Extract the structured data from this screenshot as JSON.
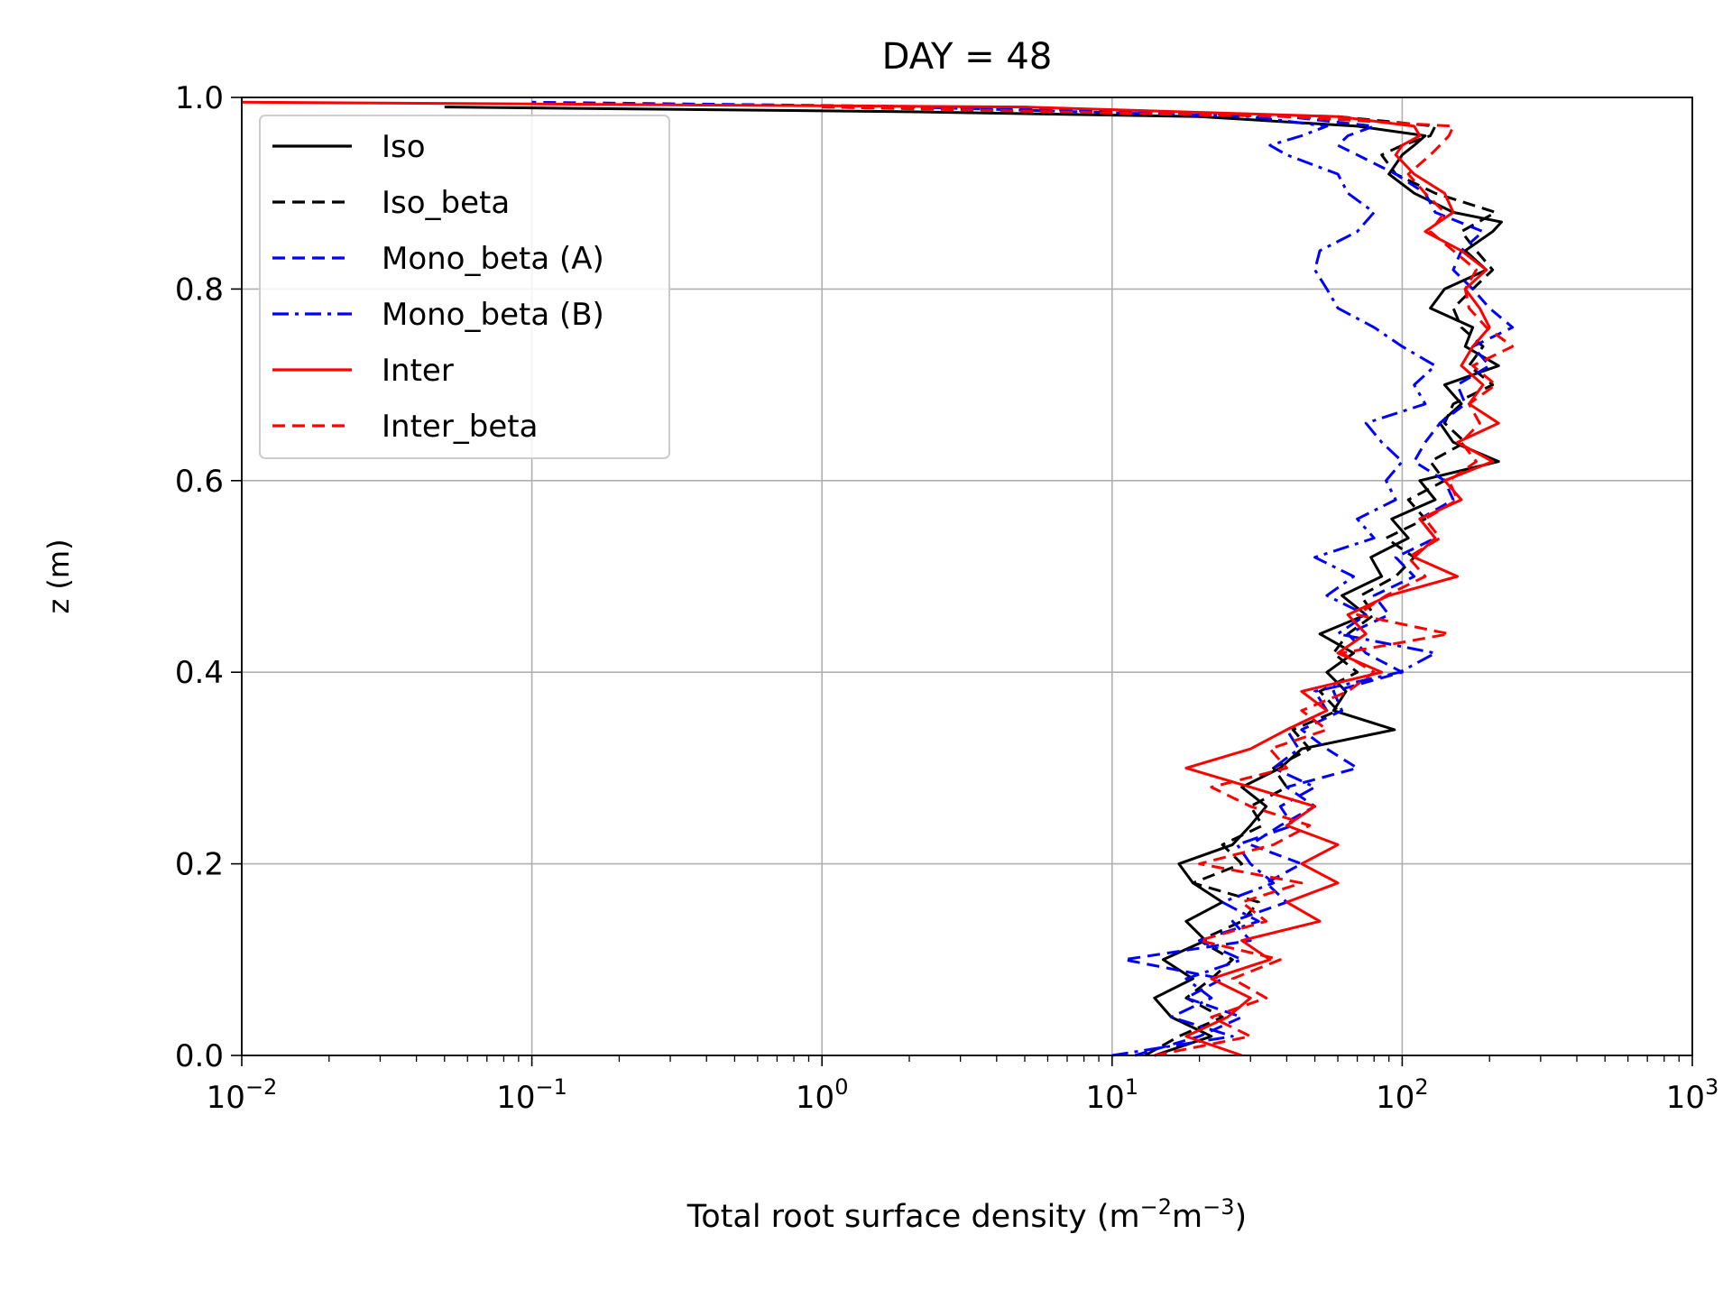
{
  "chart_data": {
    "type": "line",
    "title": "DAY = 48",
    "xlabel": "Total root surface density (m",
    "xlabel_sup1": "−2",
    "xlabel_mid": "m",
    "xlabel_sup2": "−3",
    "xlabel_end": ")",
    "ylabel": "z (m)",
    "x_scale": "log",
    "xlim": [
      0.01,
      1000
    ],
    "ylim": [
      0,
      1
    ],
    "grid": true,
    "legend_position": "top-left",
    "x_ticks": [
      {
        "value": 0.01,
        "base": "10",
        "exp": "−2"
      },
      {
        "value": 0.1,
        "base": "10",
        "exp": "−1"
      },
      {
        "value": 1,
        "base": "10",
        "exp": "0"
      },
      {
        "value": 10,
        "base": "10",
        "exp": "1"
      },
      {
        "value": 100,
        "base": "10",
        "exp": "2"
      },
      {
        "value": 1000,
        "base": "10",
        "exp": "3"
      }
    ],
    "y_ticks": [
      {
        "value": 0.0,
        "label": "0.0"
      },
      {
        "value": 0.2,
        "label": "0.2"
      },
      {
        "value": 0.4,
        "label": "0.4"
      },
      {
        "value": 0.6,
        "label": "0.6"
      },
      {
        "value": 0.8,
        "label": "0.8"
      },
      {
        "value": 1.0,
        "label": "1.0"
      }
    ],
    "series": [
      {
        "name": "Iso",
        "color": "#000000",
        "dash": "solid",
        "z": [
          0.0,
          0.02,
          0.04,
          0.06,
          0.08,
          0.1,
          0.12,
          0.14,
          0.16,
          0.18,
          0.2,
          0.22,
          0.24,
          0.26,
          0.28,
          0.3,
          0.32,
          0.34,
          0.36,
          0.38,
          0.4,
          0.42,
          0.44,
          0.46,
          0.48,
          0.5,
          0.52,
          0.54,
          0.56,
          0.58,
          0.6,
          0.62,
          0.64,
          0.66,
          0.68,
          0.7,
          0.72,
          0.74,
          0.76,
          0.78,
          0.8,
          0.82,
          0.84,
          0.86,
          0.87,
          0.88,
          0.9,
          0.92,
          0.94,
          0.95,
          0.96,
          0.97,
          0.98,
          0.985,
          0.99
        ],
        "x": [
          14,
          22,
          16,
          14,
          19,
          15,
          21,
          18,
          24,
          19,
          17,
          26,
          30,
          34,
          28,
          38,
          45,
          94,
          58,
          64,
          55,
          68,
          52,
          75,
          62,
          85,
          78,
          105,
          92,
          130,
          115,
          215,
          150,
          135,
          160,
          140,
          215,
          165,
          175,
          125,
          140,
          195,
          165,
          205,
          220,
          150,
          110,
          90,
          100,
          110,
          120,
          70,
          20,
          2,
          0.05
        ]
      },
      {
        "name": "Iso_beta",
        "color": "#000000",
        "dash": "dashed",
        "z": [
          0.0,
          0.02,
          0.04,
          0.06,
          0.08,
          0.1,
          0.12,
          0.14,
          0.16,
          0.18,
          0.2,
          0.22,
          0.24,
          0.26,
          0.28,
          0.3,
          0.32,
          0.34,
          0.36,
          0.38,
          0.4,
          0.42,
          0.44,
          0.46,
          0.48,
          0.5,
          0.52,
          0.54,
          0.56,
          0.58,
          0.6,
          0.62,
          0.64,
          0.66,
          0.68,
          0.7,
          0.72,
          0.74,
          0.76,
          0.78,
          0.8,
          0.82,
          0.84,
          0.86,
          0.88,
          0.9,
          0.92,
          0.94,
          0.95,
          0.96,
          0.97,
          0.98,
          0.985,
          0.99
        ],
        "x": [
          13,
          17,
          24,
          18,
          22,
          26,
          20,
          28,
          32,
          19,
          28,
          24,
          33,
          30,
          40,
          36,
          48,
          42,
          60,
          52,
          70,
          58,
          65,
          80,
          72,
          95,
          110,
          88,
          120,
          105,
          140,
          125,
          165,
          140,
          150,
          205,
          170,
          190,
          160,
          150,
          175,
          205,
          180,
          160,
          210,
          130,
          95,
          85,
          100,
          125,
          130,
          60,
          10,
          1
        ]
      },
      {
        "name": "Mono_beta (A)",
        "color": "#0000ff",
        "dash": "dashed",
        "z": [
          0.0,
          0.02,
          0.04,
          0.06,
          0.08,
          0.1,
          0.12,
          0.14,
          0.16,
          0.18,
          0.2,
          0.22,
          0.24,
          0.26,
          0.28,
          0.3,
          0.32,
          0.34,
          0.36,
          0.38,
          0.4,
          0.42,
          0.44,
          0.46,
          0.48,
          0.5,
          0.52,
          0.54,
          0.56,
          0.58,
          0.6,
          0.62,
          0.64,
          0.66,
          0.68,
          0.7,
          0.72,
          0.74,
          0.76,
          0.78,
          0.8,
          0.82,
          0.84,
          0.86,
          0.88,
          0.9,
          0.92,
          0.94,
          0.95,
          0.96,
          0.97,
          0.98,
          0.99,
          0.995
        ],
        "x": [
          12,
          20,
          28,
          18,
          24,
          11,
          30,
          26,
          40,
          34,
          45,
          30,
          38,
          50,
          40,
          70,
          55,
          45,
          62,
          58,
          100,
          75,
          65,
          90,
          80,
          110,
          95,
          130,
          115,
          150,
          140,
          110,
          120,
          135,
          165,
          155,
          200,
          175,
          240,
          200,
          175,
          150,
          160,
          190,
          130,
          120,
          95,
          70,
          60,
          65,
          80,
          40,
          3,
          0.1
        ]
      },
      {
        "name": "Mono_beta (B)",
        "color": "#0000ff",
        "dash": "dashdot",
        "z": [
          0.0,
          0.02,
          0.04,
          0.06,
          0.08,
          0.1,
          0.12,
          0.14,
          0.16,
          0.18,
          0.2,
          0.22,
          0.24,
          0.26,
          0.28,
          0.3,
          0.32,
          0.34,
          0.36,
          0.38,
          0.4,
          0.42,
          0.44,
          0.46,
          0.48,
          0.5,
          0.52,
          0.54,
          0.56,
          0.58,
          0.6,
          0.62,
          0.64,
          0.66,
          0.68,
          0.7,
          0.72,
          0.74,
          0.76,
          0.78,
          0.8,
          0.82,
          0.84,
          0.86,
          0.88,
          0.9,
          0.92,
          0.94,
          0.95,
          0.96,
          0.97,
          0.98,
          0.99
        ],
        "x": [
          10,
          26,
          16,
          22,
          18,
          28,
          20,
          32,
          24,
          36,
          30,
          27,
          42,
          38,
          50,
          36,
          44,
          40,
          55,
          50,
          98,
          130,
          60,
          75,
          55,
          68,
          50,
          80,
          70,
          95,
          88,
          100,
          85,
          75,
          120,
          110,
          130,
          100,
          80,
          60,
          55,
          50,
          52,
          70,
          80,
          65,
          60,
          40,
          35,
          45,
          55,
          30,
          2
        ]
      },
      {
        "name": "Inter",
        "color": "#ff0000",
        "dash": "solid",
        "z": [
          0.0,
          0.02,
          0.04,
          0.06,
          0.08,
          0.1,
          0.12,
          0.14,
          0.16,
          0.18,
          0.2,
          0.22,
          0.24,
          0.26,
          0.28,
          0.3,
          0.32,
          0.34,
          0.36,
          0.38,
          0.4,
          0.42,
          0.44,
          0.46,
          0.48,
          0.5,
          0.52,
          0.54,
          0.56,
          0.58,
          0.6,
          0.62,
          0.64,
          0.66,
          0.68,
          0.7,
          0.72,
          0.74,
          0.76,
          0.78,
          0.8,
          0.82,
          0.84,
          0.86,
          0.88,
          0.9,
          0.92,
          0.94,
          0.95,
          0.96,
          0.97,
          0.98,
          0.99,
          0.995
        ],
        "x": [
          28,
          18,
          25,
          30,
          22,
          35,
          28,
          52,
          40,
          60,
          45,
          60,
          40,
          50,
          30,
          18,
          30,
          40,
          55,
          45,
          85,
          60,
          75,
          65,
          90,
          155,
          110,
          130,
          115,
          160,
          140,
          205,
          155,
          215,
          170,
          190,
          160,
          175,
          200,
          185,
          165,
          195,
          160,
          120,
          150,
          140,
          110,
          95,
          100,
          115,
          110,
          60,
          5,
          0.01
        ]
      },
      {
        "name": "Inter_beta",
        "color": "#ff0000",
        "dash": "dashed",
        "z": [
          0.0,
          0.02,
          0.04,
          0.06,
          0.08,
          0.1,
          0.12,
          0.14,
          0.16,
          0.18,
          0.2,
          0.22,
          0.24,
          0.26,
          0.28,
          0.3,
          0.32,
          0.34,
          0.36,
          0.38,
          0.4,
          0.42,
          0.44,
          0.46,
          0.48,
          0.5,
          0.52,
          0.54,
          0.56,
          0.58,
          0.6,
          0.62,
          0.64,
          0.66,
          0.68,
          0.7,
          0.72,
          0.74,
          0.76,
          0.78,
          0.8,
          0.82,
          0.84,
          0.86,
          0.88,
          0.9,
          0.92,
          0.94,
          0.95,
          0.96,
          0.97,
          0.98,
          0.99
        ],
        "x": [
          14,
          30,
          22,
          34,
          26,
          38,
          20,
          34,
          28,
          45,
          20,
          36,
          48,
          30,
          22,
          40,
          35,
          55,
          45,
          65,
          80,
          62,
          145,
          70,
          88,
          120,
          105,
          135,
          120,
          155,
          145,
          180,
          160,
          185,
          170,
          210,
          175,
          240,
          195,
          170,
          165,
          180,
          150,
          125,
          140,
          120,
          105,
          125,
          135,
          145,
          150,
          40,
          1
        ]
      }
    ]
  }
}
